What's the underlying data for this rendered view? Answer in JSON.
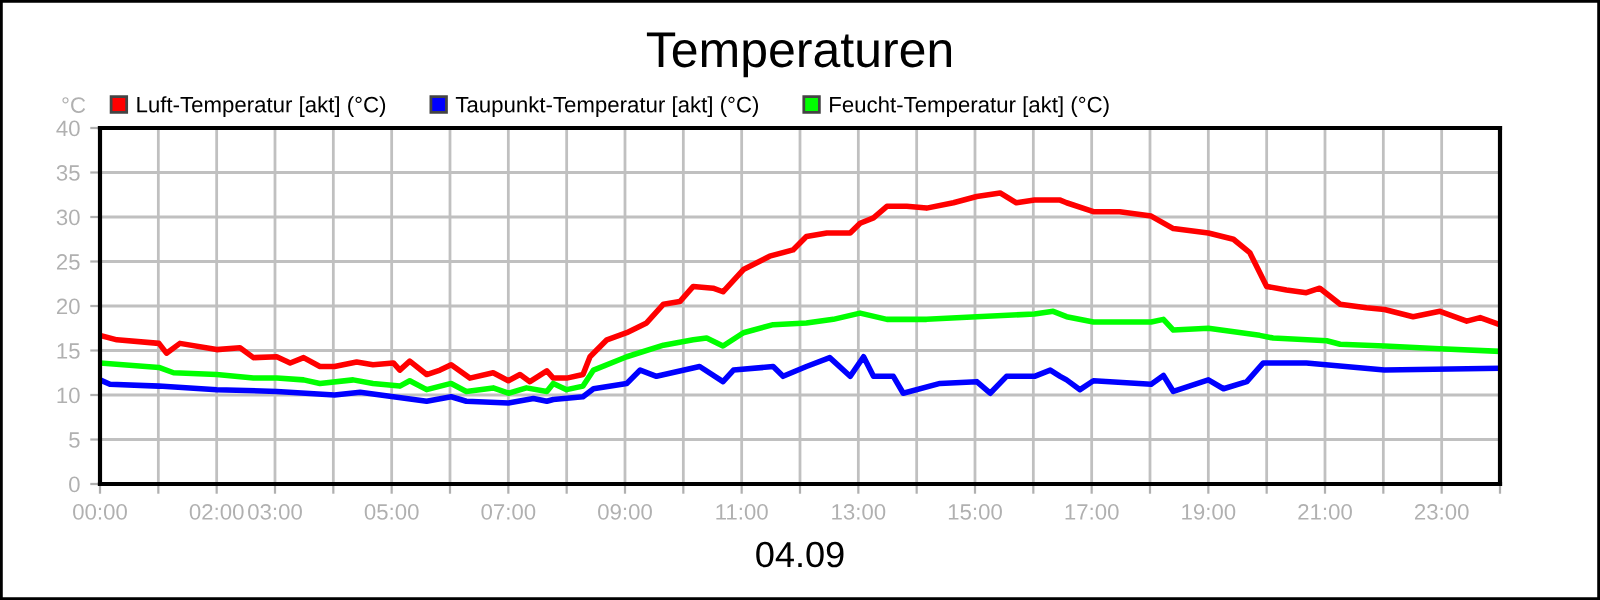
{
  "chart_data": {
    "type": "line",
    "title": "Temperaturen",
    "ylabel": "°C",
    "xlabel": "04.09",
    "series": [
      {
        "name": "Luft-Temperatur [akt] (°C)",
        "color": "#ff0000",
        "x": [
          0,
          0.29,
          1.01,
          1.14,
          1.37,
          2.0,
          2.4,
          2.63,
          3.03,
          3.26,
          3.49,
          3.77,
          4.02,
          4.4,
          4.68,
          5.03,
          5.14,
          5.31,
          5.6,
          5.83,
          6.02,
          6.34,
          6.74,
          7.0,
          7.2,
          7.37,
          7.66,
          7.77,
          8.0,
          8.28,
          8.4,
          8.69,
          9.03,
          9.37,
          9.66,
          9.94,
          10.17,
          10.51,
          10.68,
          11.03,
          11.48,
          11.88,
          12.11,
          12.46,
          12.86,
          13.03,
          13.26,
          13.49,
          13.83,
          14.17,
          14.63,
          15.03,
          15.43,
          15.71,
          16.02,
          16.46,
          16.57,
          17.03,
          17.48,
          18.02,
          18.4,
          19.0,
          19.43,
          19.71,
          20.0,
          20.34,
          20.68,
          20.91,
          21.26,
          21.71,
          22.02,
          22.51,
          22.97,
          23.43,
          23.66,
          24.0
        ],
        "values": [
          16.7,
          16.2,
          15.8,
          14.7,
          15.8,
          15.1,
          15.3,
          14.2,
          14.3,
          13.6,
          14.2,
          13.2,
          13.2,
          13.7,
          13.4,
          13.6,
          12.8,
          13.8,
          12.3,
          12.8,
          13.4,
          11.9,
          12.5,
          11.6,
          12.3,
          11.5,
          12.7,
          11.9,
          11.9,
          12.3,
          14.3,
          16.2,
          17.0,
          18.1,
          20.2,
          20.5,
          22.2,
          22.0,
          21.6,
          24.1,
          25.6,
          26.3,
          27.8,
          28.2,
          28.2,
          29.3,
          29.9,
          31.2,
          31.2,
          31.0,
          31.6,
          32.3,
          32.7,
          31.6,
          31.9,
          31.9,
          31.6,
          30.6,
          30.6,
          30.1,
          28.7,
          28.2,
          27.5,
          26.0,
          22.2,
          21.8,
          21.5,
          22.0,
          20.2,
          19.8,
          19.6,
          18.8,
          19.4,
          18.3,
          18.7,
          17.9
        ]
      },
      {
        "name": "Taupunkt-Temperatur [akt] (°C)",
        "color": "#0000ff",
        "x": [
          0,
          0.17,
          1.01,
          2.0,
          3.03,
          4.02,
          4.46,
          5.03,
          5.6,
          6.02,
          6.28,
          7.0,
          7.43,
          7.66,
          7.77,
          8.28,
          8.46,
          9.03,
          9.26,
          9.54,
          10.28,
          10.68,
          10.86,
          11.54,
          11.71,
          12.11,
          12.51,
          12.86,
          13.09,
          13.26,
          13.6,
          13.77,
          14.4,
          15.03,
          15.26,
          15.54,
          16.02,
          16.29,
          16.46,
          16.57,
          16.8,
          17.03,
          18.02,
          18.23,
          18.4,
          19.0,
          19.26,
          19.66,
          19.94,
          20.68,
          22.02,
          24.0
        ],
        "values": [
          11.7,
          11.2,
          11.0,
          10.6,
          10.4,
          10.0,
          10.3,
          9.8,
          9.3,
          9.8,
          9.3,
          9.1,
          9.6,
          9.3,
          9.5,
          9.8,
          10.7,
          11.3,
          12.8,
          12.1,
          13.2,
          11.5,
          12.8,
          13.2,
          12.1,
          13.2,
          14.2,
          12.1,
          14.3,
          12.1,
          12.1,
          10.2,
          11.3,
          11.5,
          10.2,
          12.1,
          12.1,
          12.8,
          12.1,
          11.7,
          10.6,
          11.6,
          11.2,
          12.2,
          10.4,
          11.7,
          10.7,
          11.5,
          13.6,
          13.6,
          12.8,
          13.0
        ]
      },
      {
        "name": "Feucht-Temperatur [akt] (°C)",
        "color": "#00ff00",
        "x": [
          0,
          1.01,
          1.26,
          2.0,
          2.63,
          3.03,
          3.49,
          3.77,
          4.34,
          4.68,
          5.14,
          5.31,
          5.6,
          6.02,
          6.28,
          6.74,
          7.0,
          7.31,
          7.66,
          7.77,
          8.0,
          8.28,
          8.46,
          9.03,
          9.66,
          10.17,
          10.4,
          10.68,
          11.03,
          11.54,
          12.11,
          12.57,
          13.03,
          13.49,
          14.17,
          15.03,
          16.02,
          16.34,
          16.57,
          17.03,
          18.02,
          18.23,
          18.4,
          19.0,
          19.88,
          20.11,
          21.03,
          21.26,
          22.02,
          22.97,
          24.0
        ],
        "values": [
          13.6,
          13.1,
          12.5,
          12.3,
          11.9,
          11.9,
          11.7,
          11.3,
          11.7,
          11.3,
          11.0,
          11.6,
          10.6,
          11.3,
          10.4,
          10.8,
          10.2,
          10.8,
          10.4,
          11.3,
          10.6,
          11.0,
          12.8,
          14.3,
          15.6,
          16.2,
          16.4,
          15.5,
          17.0,
          17.9,
          18.1,
          18.5,
          19.2,
          18.5,
          18.5,
          18.8,
          19.1,
          19.4,
          18.8,
          18.2,
          18.2,
          18.5,
          17.3,
          17.5,
          16.7,
          16.4,
          16.1,
          15.7,
          15.5,
          15.2,
          14.9
        ]
      }
    ],
    "xlim": [
      0,
      24
    ],
    "xticks": [
      {
        "value": 0,
        "label": "00:00"
      },
      {
        "value": 1,
        "label": null
      },
      {
        "value": 2,
        "label": "02:00"
      },
      {
        "value": 3,
        "label": "03:00"
      },
      {
        "value": 4,
        "label": null
      },
      {
        "value": 5,
        "label": "05:00"
      },
      {
        "value": 6,
        "label": null
      },
      {
        "value": 7,
        "label": "07:00"
      },
      {
        "value": 8,
        "label": null
      },
      {
        "value": 9,
        "label": "09:00"
      },
      {
        "value": 10,
        "label": null
      },
      {
        "value": 11,
        "label": "11:00"
      },
      {
        "value": 12,
        "label": null
      },
      {
        "value": 13,
        "label": "13:00"
      },
      {
        "value": 14,
        "label": null
      },
      {
        "value": 15,
        "label": "15:00"
      },
      {
        "value": 16,
        "label": null
      },
      {
        "value": 17,
        "label": "17:00"
      },
      {
        "value": 18,
        "label": null
      },
      {
        "value": 19,
        "label": "19:00"
      },
      {
        "value": 20,
        "label": null
      },
      {
        "value": 21,
        "label": "21:00"
      },
      {
        "value": 22,
        "label": null
      },
      {
        "value": 23,
        "label": "23:00"
      },
      {
        "value": 24,
        "label": null
      }
    ],
    "ylim": [
      0,
      40
    ],
    "yticks": [
      0,
      5,
      10,
      15,
      20,
      25,
      30,
      35,
      40
    ],
    "grid": true,
    "legend": "top",
    "marker": "none",
    "line_style": "solid"
  }
}
